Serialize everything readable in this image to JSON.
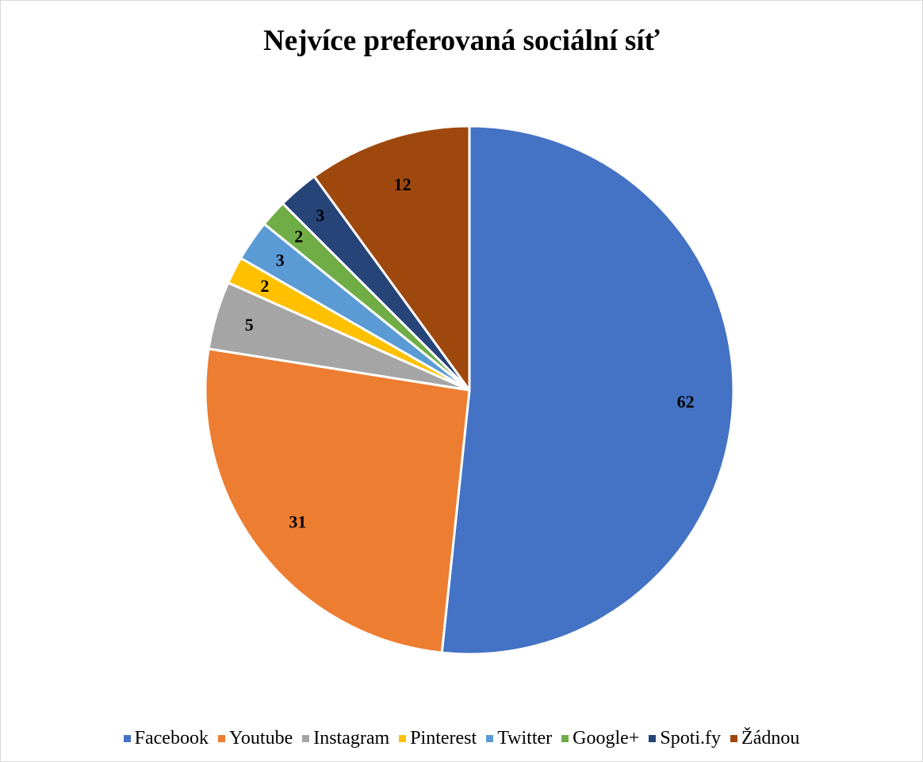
{
  "chart_data": {
    "type": "pie",
    "title": "Nejvíce preferovaná sociální síť",
    "categories": [
      "Facebook",
      "Youtube",
      "Instagram",
      "Pinterest",
      "Twitter",
      "Google+",
      "Spoti.fy",
      "Žádnou"
    ],
    "values": [
      62,
      31,
      5,
      2,
      3,
      2,
      3,
      12
    ],
    "colors": [
      "#4472C4",
      "#ED7D31",
      "#A5A5A5",
      "#FFC000",
      "#5B9BD5",
      "#70AD47",
      "#264478",
      "#9E480E"
    ],
    "data_labels": true,
    "legend_position": "bottom",
    "start_angle": "12 o'clock, clockwise"
  }
}
